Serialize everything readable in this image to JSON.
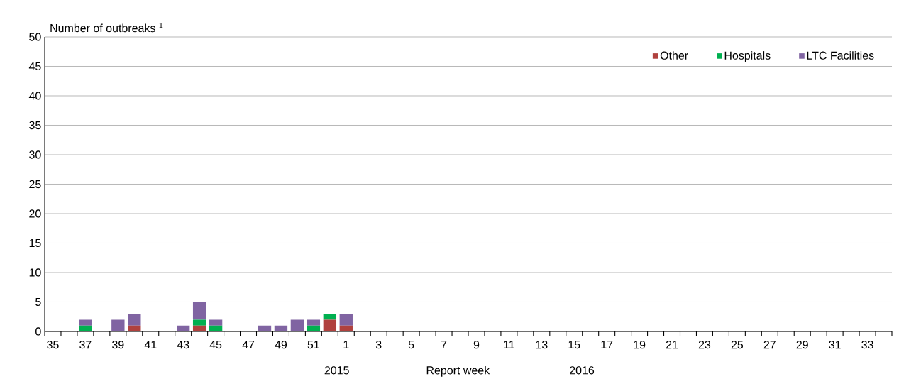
{
  "chart_data": {
    "type": "bar",
    "stacked": true,
    "ylabel": "Number of outbreaks $^{1}$",
    "xlabel": "Report week",
    "categories": [
      "35",
      null,
      "37",
      null,
      "39",
      null,
      "41",
      null,
      "43",
      null,
      "45",
      null,
      "47",
      null,
      "49",
      null,
      "51",
      null,
      "1",
      null,
      "3",
      null,
      "5",
      null,
      "7",
      null,
      "9",
      null,
      "11",
      null,
      "13",
      null,
      "15",
      null,
      "17",
      null,
      "19",
      null,
      "21",
      null,
      "23",
      null,
      "25",
      null,
      "27",
      null,
      "29",
      null,
      "31",
      null,
      "33",
      null
    ],
    "series": [
      {
        "name": "Other",
        "color": "#b0413e",
        "values": [
          0,
          0,
          0,
          0,
          0,
          1,
          0,
          0,
          0,
          1,
          0,
          0,
          0,
          0,
          0,
          0,
          0,
          2,
          1,
          0,
          0,
          0,
          0,
          0,
          0,
          0,
          0,
          0,
          0,
          0,
          0,
          0,
          0,
          0,
          0,
          0,
          0,
          0,
          0,
          0,
          0,
          0,
          0,
          0,
          0,
          0,
          0,
          0,
          0,
          0,
          0,
          0
        ]
      },
      {
        "name": "Hospitals",
        "color": "#00b050",
        "values": [
          0,
          0,
          1,
          0,
          0,
          0,
          0,
          0,
          0,
          1,
          1,
          0,
          0,
          0,
          0,
          0,
          1,
          1,
          0,
          0,
          0,
          0,
          0,
          0,
          0,
          0,
          0,
          0,
          0,
          0,
          0,
          0,
          0,
          0,
          0,
          0,
          0,
          0,
          0,
          0,
          0,
          0,
          0,
          0,
          0,
          0,
          0,
          0,
          0,
          0,
          0,
          0
        ]
      },
      {
        "name": "LTC Facilities",
        "color": "#8064a2",
        "values": [
          0,
          0,
          1,
          0,
          2,
          2,
          0,
          0,
          1,
          3,
          1,
          0,
          0,
          1,
          1,
          2,
          1,
          0,
          2,
          0,
          0,
          0,
          0,
          0,
          0,
          0,
          0,
          0,
          0,
          0,
          0,
          0,
          0,
          0,
          0,
          0,
          0,
          0,
          0,
          0,
          0,
          0,
          0,
          0,
          0,
          0,
          0,
          0,
          0,
          0,
          0,
          0
        ]
      }
    ],
    "ylim": [
      0,
      50
    ],
    "yticks": [
      0,
      5,
      10,
      15,
      20,
      25,
      30,
      35,
      40,
      45,
      50
    ],
    "grid": "y",
    "legend": "top right",
    "annotations": [
      "2015",
      "2016"
    ]
  }
}
